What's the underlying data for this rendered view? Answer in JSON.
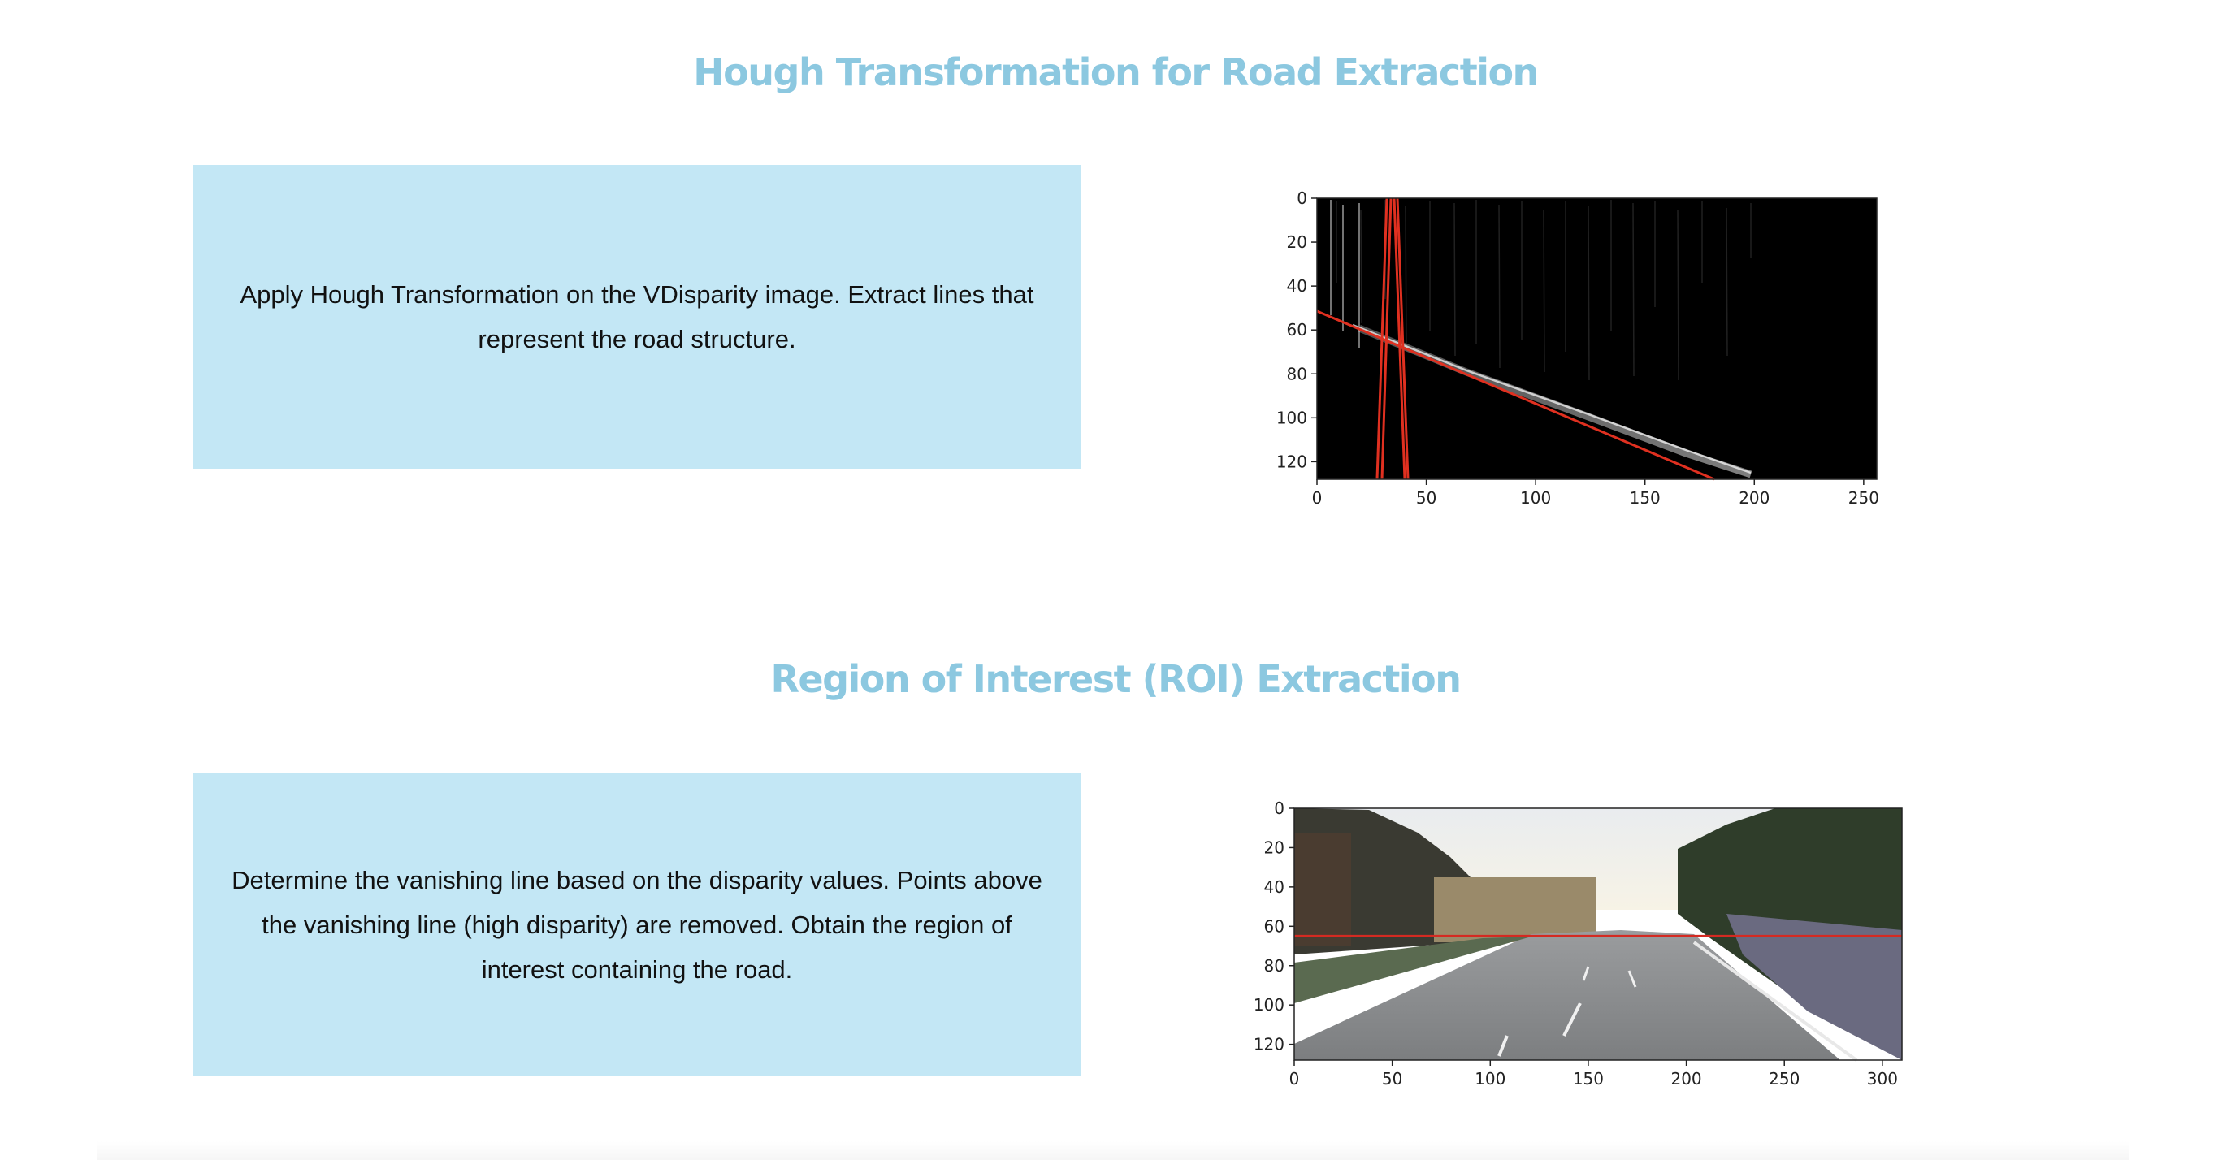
{
  "colors": {
    "heading": "#8cc8e0",
    "box_background": "#c3e7f5",
    "hough_line": "#e03020",
    "vanishing_line": "#d42a22"
  },
  "sections": [
    {
      "title": "Hough Transformation for Road Extraction",
      "description": "Apply Hough Transformation on the VDisparity image. Extract lines that represent the road structure.",
      "figure": {
        "type": "image-plot",
        "image_content": "v-disparity-map",
        "x_ticks": [
          "0",
          "50",
          "100",
          "150",
          "200",
          "250"
        ],
        "y_ticks": [
          "0",
          "20",
          "40",
          "60",
          "80",
          "100",
          "120"
        ],
        "xlim": [
          0,
          256
        ],
        "ylim": [
          0,
          128
        ]
      }
    },
    {
      "title": "Region of Interest (ROI) Extraction",
      "description": "Determine the vanishing line based on the disparity values. Points above the vanishing line (high disparity) are removed. Obtain the region of interest containing the road.",
      "figure": {
        "type": "image-plot",
        "image_content": "road-scene-with-vanishing-line",
        "x_ticks": [
          "0",
          "50",
          "100",
          "150",
          "200",
          "250",
          "300"
        ],
        "y_ticks": [
          "0",
          "20",
          "40",
          "60",
          "80",
          "100",
          "120"
        ],
        "xlim": [
          0,
          310
        ],
        "ylim": [
          0,
          128
        ],
        "vanishing_line_y": 65
      }
    }
  ]
}
